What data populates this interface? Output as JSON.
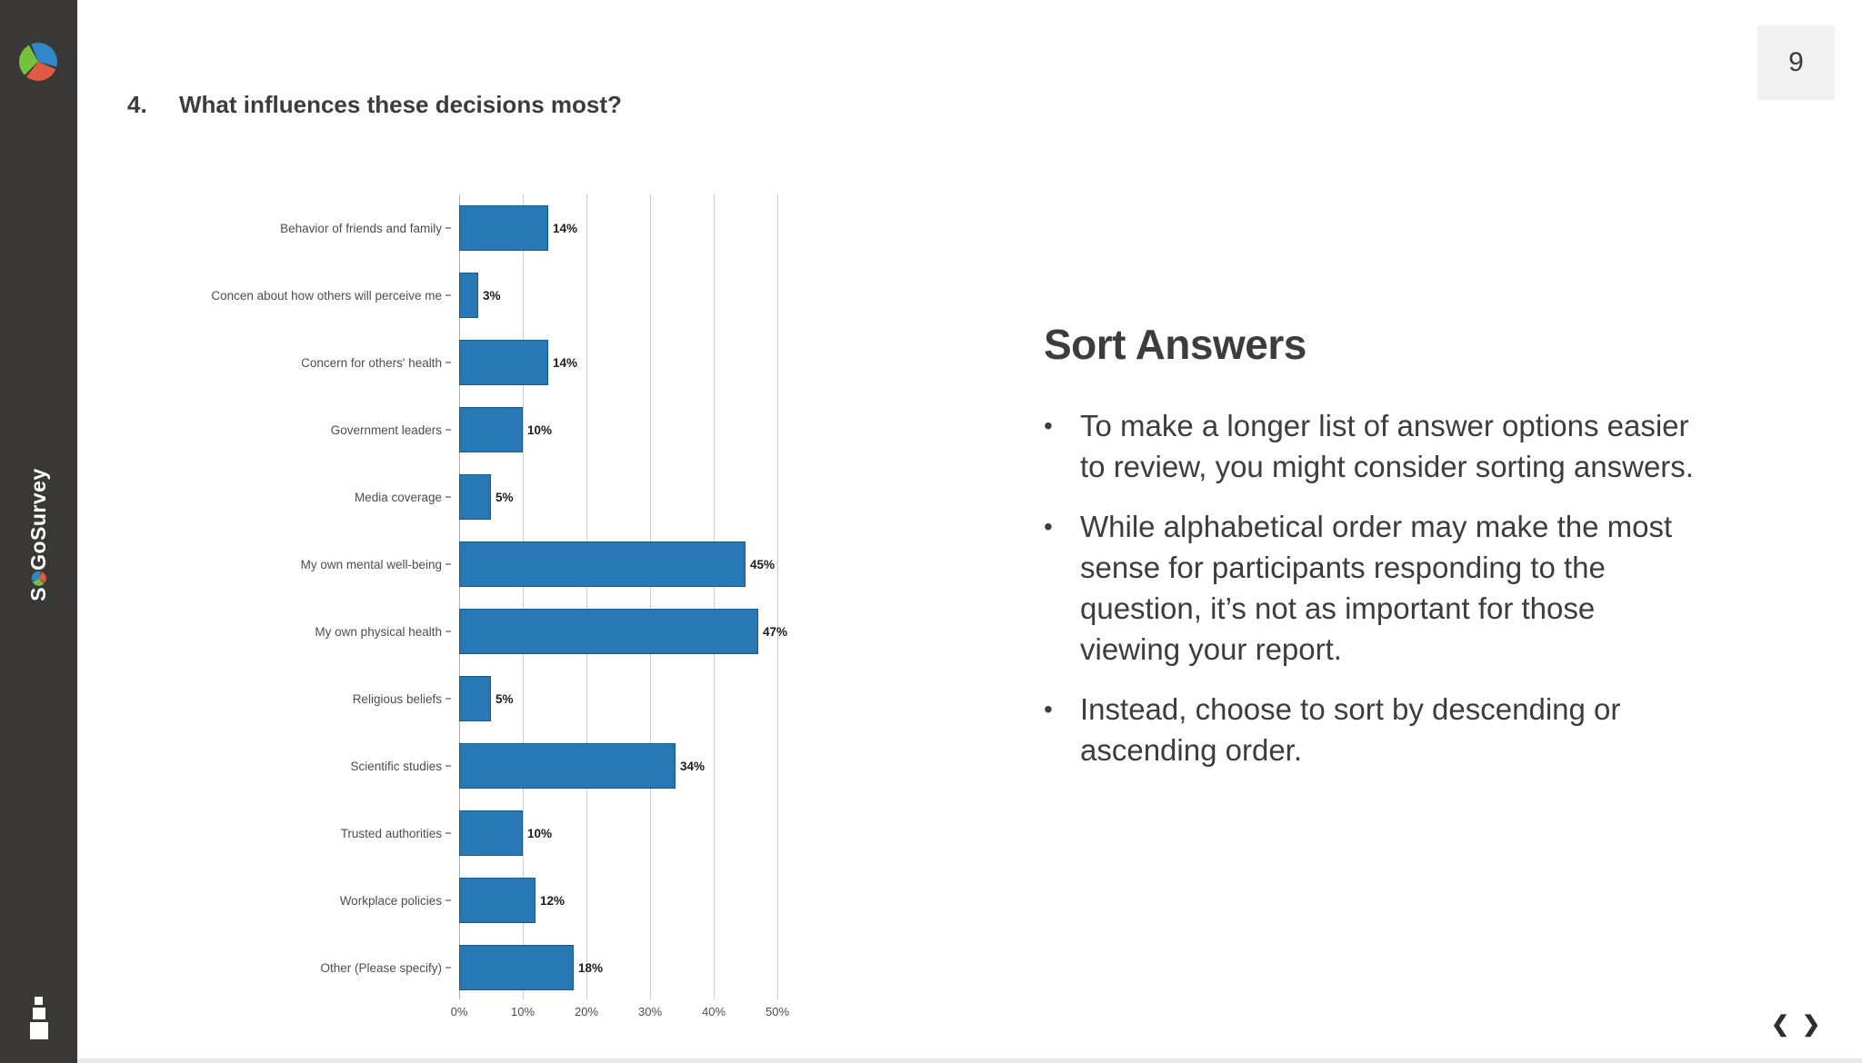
{
  "sidebar": {
    "brand_s": "S",
    "brand_rest": "GoSurvey"
  },
  "page": {
    "number": "9"
  },
  "slide": {
    "question_number": "4.",
    "question_title": "What influences these decisions most?"
  },
  "chart_data": {
    "type": "bar",
    "orientation": "horizontal",
    "title": "What influences these decisions most?",
    "categories": [
      "Behavior of friends and family",
      "Concen about how others will perceive me",
      "Concern for others' health",
      "Government leaders",
      "Media coverage",
      "My own mental well-being",
      "My own physical health",
      "Religious beliefs",
      "Scientific studies",
      "Trusted authorities",
      "Workplace policies",
      "Other (Please specify)"
    ],
    "values": [
      14,
      3,
      14,
      10,
      5,
      45,
      47,
      5,
      34,
      10,
      12,
      18
    ],
    "value_labels": [
      "14%",
      "3%",
      "14%",
      "10%",
      "5%",
      "45%",
      "47%",
      "5%",
      "34%",
      "10%",
      "12%",
      "18%"
    ],
    "x_ticks": [
      "0%",
      "10%",
      "20%",
      "30%",
      "40%",
      "50%"
    ],
    "xlim": [
      0,
      50
    ],
    "grid": true,
    "bar_color": "#2878b5",
    "bar_border_color": "#195a88"
  },
  "content": {
    "heading": "Sort Answers",
    "bullets": [
      "To make a longer list of answer options easier\nto review, you might consider sorting answers.",
      "While alphabetical order may make the most\nsense for participants responding to the\nquestion, it’s not as important for those\nviewing your report.",
      "Instead, choose to sort by descending or\nascending order."
    ]
  },
  "nav": {
    "prev": "❮",
    "next": "❯"
  }
}
